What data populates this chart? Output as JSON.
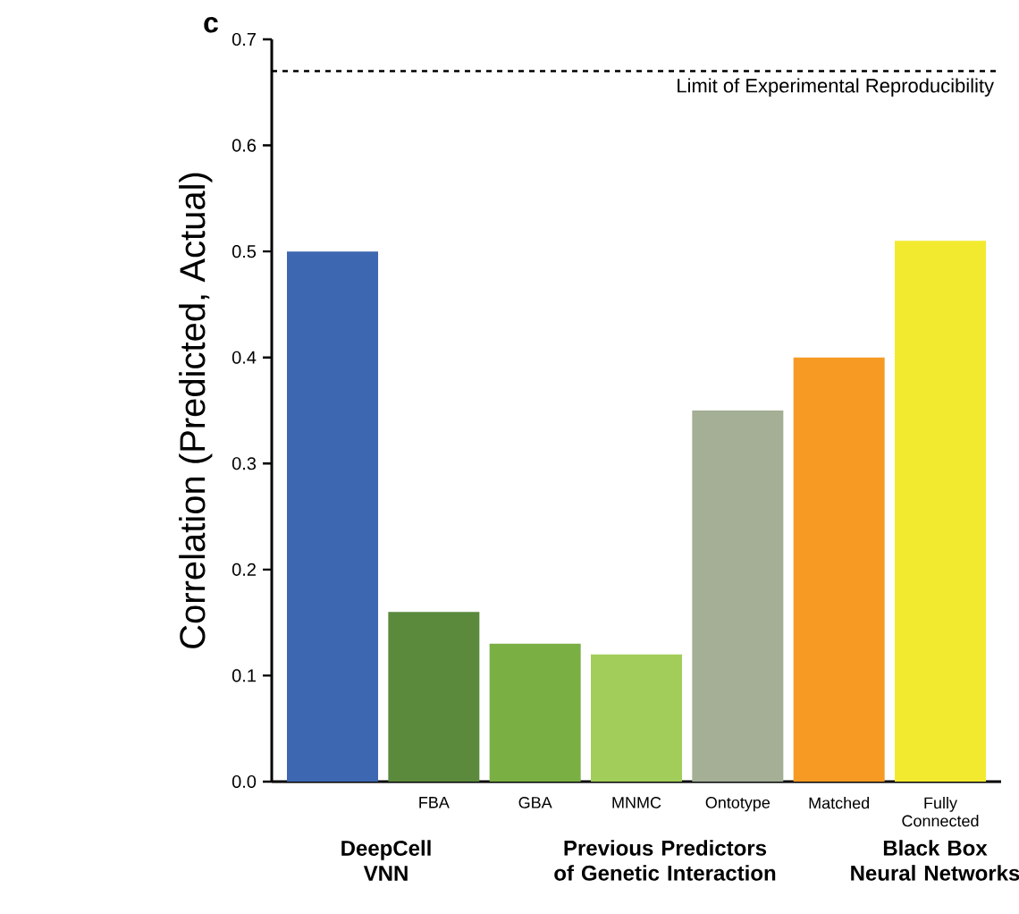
{
  "chart_data": {
    "type": "bar",
    "ylabel": "Correlation (Predicted, Actual)",
    "categories": [
      null,
      "FBA",
      "GBA",
      "MNMC",
      "Ontotype",
      "Matched",
      "Fully Connected"
    ],
    "values": [
      0.5,
      0.16,
      0.13,
      0.12,
      0.35,
      0.4,
      0.51
    ],
    "colors": [
      "#3e67b1",
      "#5b8a3d",
      "#7aaf43",
      "#a2cd5a",
      "#a4af95",
      "#f69a23",
      "#f2ea2e"
    ],
    "ylim": [
      0,
      0.7
    ],
    "yticks": [
      {
        "value": 0,
        "label": "0.0"
      },
      {
        "value": 0.1,
        "label": "0.1"
      },
      {
        "value": 0.2,
        "label": "0.2"
      },
      {
        "value": 0.3,
        "label": "0.3"
      },
      {
        "value": 0.4,
        "label": "0.4"
      },
      {
        "value": 0.5,
        "label": "0.5"
      },
      {
        "value": 0.6,
        "label": "0.6"
      },
      {
        "value": 0.7,
        "label": "0.7"
      }
    ],
    "ref_lines": [
      {
        "axis": "y",
        "value": 0.67,
        "label": "Limit of Experimental Reproducibility",
        "line_style": "dashed"
      }
    ],
    "annotations": [
      "c",
      "DeepCell VNN",
      "Previous Predictors of Genetic Interaction",
      "Black Box Neural Networks"
    ],
    "grid": false
  }
}
